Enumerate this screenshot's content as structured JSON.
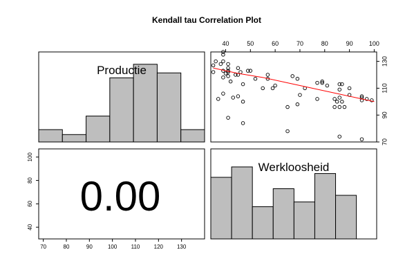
{
  "title": "Kendall tau Correlation Plot",
  "chart_data": [
    {
      "panel": "top-left",
      "type": "bar",
      "label": "Productie",
      "bins": [
        70,
        80,
        90,
        100,
        110,
        120,
        130,
        140
      ],
      "heights": [
        1,
        0.6,
        2.1,
        5.2,
        6.3,
        5.6,
        1.0
      ],
      "xlim": [
        70,
        140
      ],
      "ylim": [
        0,
        7.3
      ]
    },
    {
      "panel": "top-right",
      "type": "scatter",
      "xlim": [
        34,
        101
      ],
      "ylim": [
        70,
        137
      ],
      "x_ticks": [
        40,
        50,
        60,
        70,
        80,
        90,
        100
      ],
      "y_ticks": [
        70,
        90,
        110,
        130
      ],
      "points": [
        [
          35,
          127
        ],
        [
          35,
          122
        ],
        [
          36,
          130
        ],
        [
          37,
          102
        ],
        [
          38,
          128
        ],
        [
          39,
          130
        ],
        [
          39,
          135
        ],
        [
          39,
          137
        ],
        [
          39,
          118
        ],
        [
          39,
          123
        ],
        [
          39,
          106
        ],
        [
          40,
          121
        ],
        [
          41,
          123
        ],
        [
          41,
          125
        ],
        [
          41,
          128
        ],
        [
          41,
          119
        ],
        [
          41,
          122
        ],
        [
          41,
          88
        ],
        [
          42,
          115
        ],
        [
          43,
          103
        ],
        [
          44,
          120
        ],
        [
          45,
          120
        ],
        [
          45,
          125
        ],
        [
          45,
          104
        ],
        [
          46,
          122
        ],
        [
          47,
          100
        ],
        [
          47,
          84
        ],
        [
          47,
          113
        ],
        [
          49,
          123
        ],
        [
          50,
          123
        ],
        [
          52,
          117
        ],
        [
          55,
          110
        ],
        [
          57,
          120
        ],
        [
          57,
          117
        ],
        [
          59,
          110
        ],
        [
          60,
          112
        ],
        [
          65,
          96
        ],
        [
          65,
          78
        ],
        [
          67,
          119
        ],
        [
          69,
          117
        ],
        [
          69,
          98
        ],
        [
          70,
          105
        ],
        [
          72,
          110
        ],
        [
          77,
          114
        ],
        [
          77,
          102
        ],
        [
          79,
          115
        ],
        [
          79,
          114
        ],
        [
          81,
          112
        ],
        [
          84,
          96
        ],
        [
          84,
          102
        ],
        [
          85,
          100
        ],
        [
          86,
          103
        ],
        [
          86,
          96
        ],
        [
          86,
          109
        ],
        [
          86,
          113
        ],
        [
          86,
          74
        ],
        [
          87,
          100
        ],
        [
          87,
          113
        ],
        [
          88,
          96
        ],
        [
          90,
          110
        ],
        [
          90,
          105
        ],
        [
          95,
          103
        ],
        [
          95,
          104
        ],
        [
          95,
          72
        ],
        [
          95,
          101
        ],
        [
          97,
          102
        ],
        [
          99,
          101
        ]
      ],
      "fit_line": [
        [
          35,
          125
        ],
        [
          45,
          121
        ],
        [
          55,
          118
        ],
        [
          65,
          114
        ],
        [
          75,
          110
        ],
        [
          85,
          106
        ],
        [
          95,
          102
        ],
        [
          100,
          100
        ]
      ]
    },
    {
      "panel": "bottom-left",
      "type": "text",
      "value": "0.00",
      "x_ticks": [
        70,
        80,
        90,
        100,
        110,
        120,
        130
      ],
      "y_ticks": [
        40,
        60,
        80,
        100
      ],
      "xlim": [
        68,
        140
      ],
      "ylim": [
        30,
        107
      ]
    },
    {
      "panel": "bottom-right",
      "type": "bar",
      "label": "Werkloosheid",
      "bins": [
        34,
        42.4,
        50.8,
        59.2,
        67.6,
        76,
        84.4,
        92.8,
        101.2
      ],
      "heights": [
        6.5,
        7.6,
        3.4,
        5.3,
        3.9,
        6.9,
        4.6,
        0
      ],
      "xlim": [
        34,
        101
      ],
      "ylim": [
        0,
        9.5
      ]
    }
  ]
}
